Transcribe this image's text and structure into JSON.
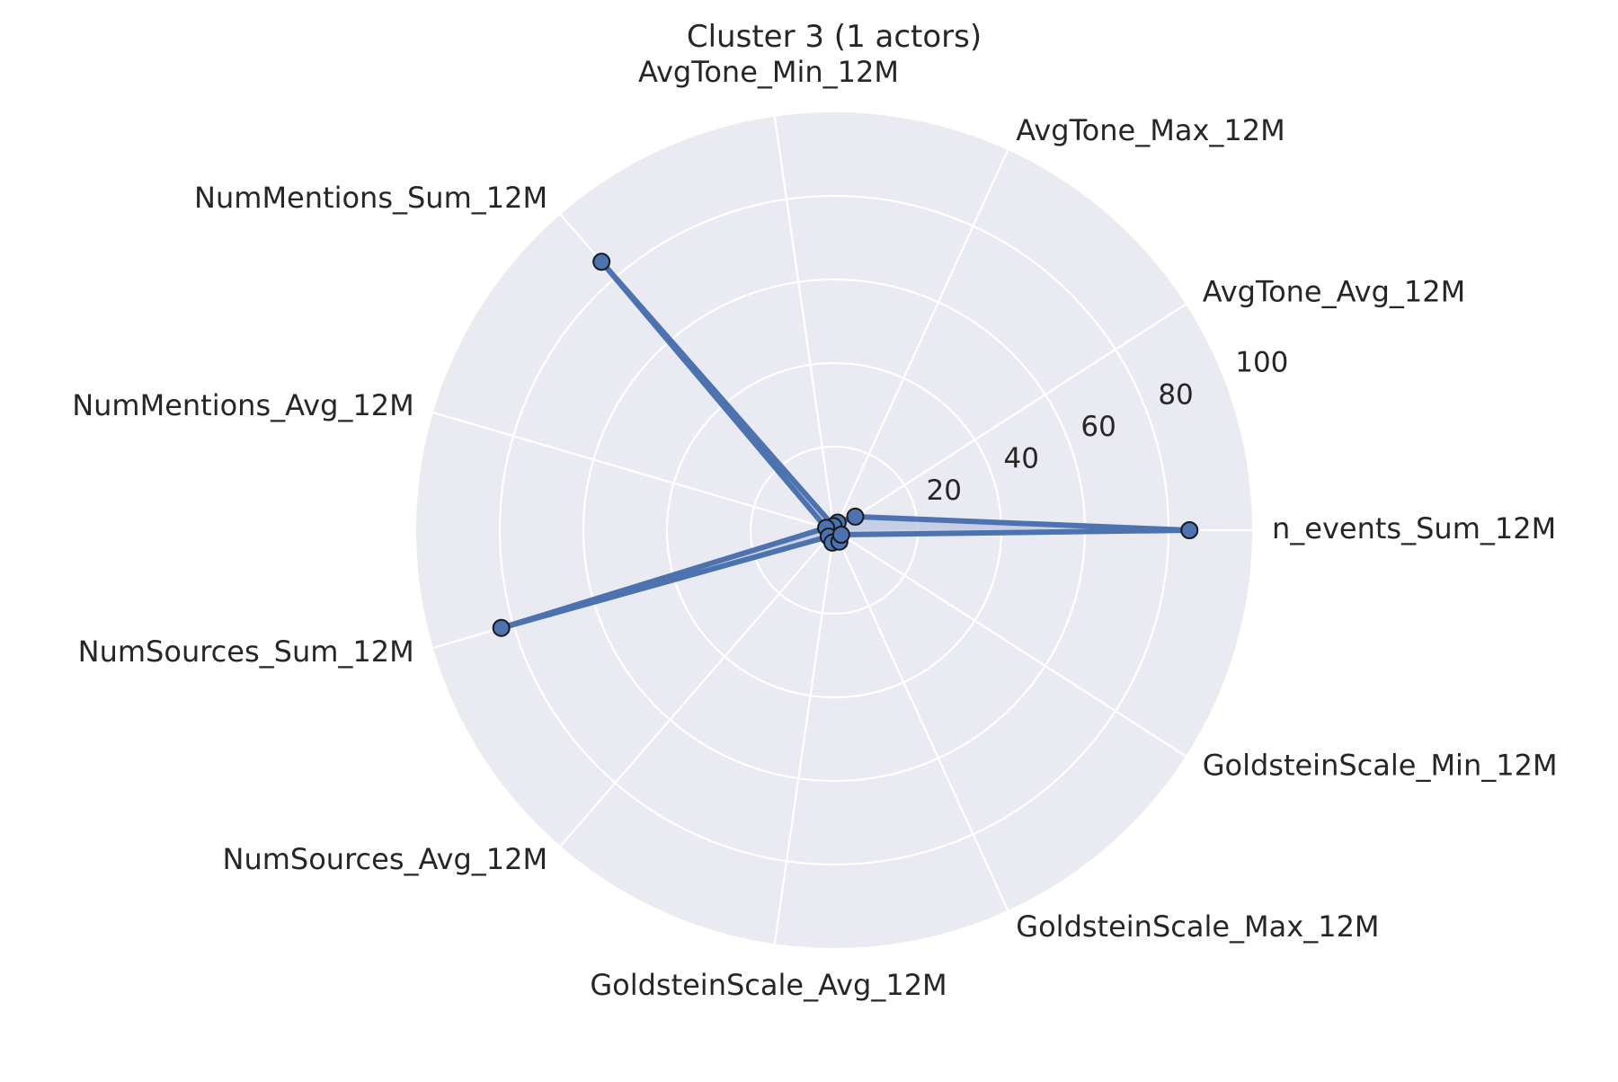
{
  "chart_data": {
    "type": "radar",
    "title": "Cluster 3 (1 actors)",
    "axes": [
      "n_events_Sum_12M",
      "AvgTone_Avg_12M",
      "AvgTone_Max_12M",
      "AvgTone_Min_12M",
      "NumMentions_Sum_12M",
      "NumMentions_Avg_12M",
      "NumSources_Sum_12M",
      "NumSources_Avg_12M",
      "GoldsteinScale_Avg_12M",
      "GoldsteinScale_Max_12M",
      "GoldsteinScale_Min_12M"
    ],
    "radial_ticks": [
      20,
      40,
      60,
      80,
      100
    ],
    "rlim": [
      0,
      100
    ],
    "grid": true,
    "series": [
      {
        "values": [
          85,
          6,
          2,
          1,
          85,
          2,
          83,
          2,
          3,
          3,
          2
        ],
        "color": "#4c72b0"
      }
    ],
    "colors": {
      "background": "#eaeaf2",
      "grid": "#ffffff",
      "line": "#4c72b0",
      "fill": "#b9c4df",
      "marker_edge": "#1a1a1a",
      "text": "#262626"
    }
  }
}
